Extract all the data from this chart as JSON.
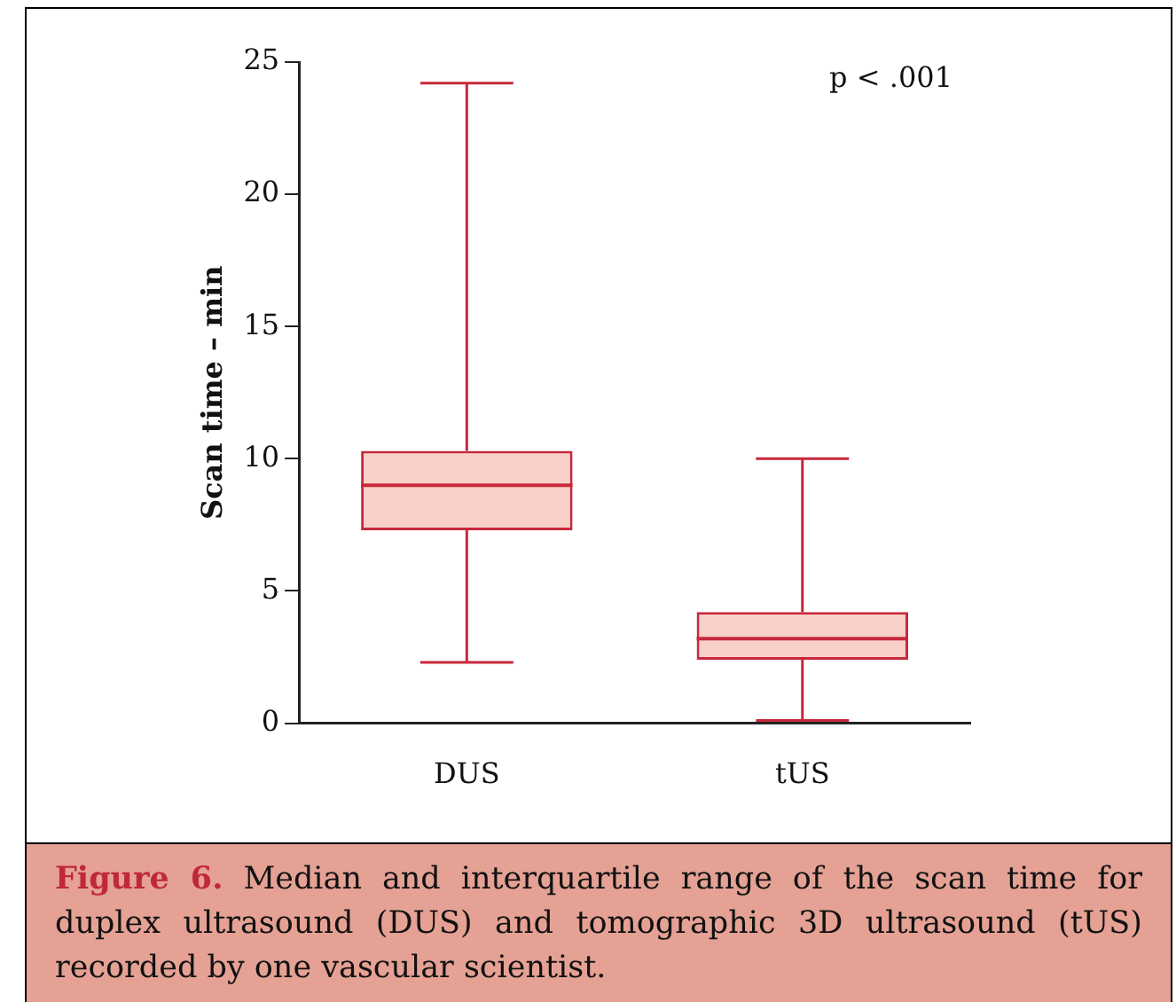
{
  "chart_data": {
    "type": "box",
    "title": "Figure 6.",
    "ylabel": "Scan time – min",
    "categories": [
      "DUS",
      "tUS"
    ],
    "boxes": [
      {
        "low": 2.3,
        "q1": 7.3,
        "median": 9.0,
        "q3": 10.3,
        "high": 24.2
      },
      {
        "low": 0.1,
        "q1": 2.4,
        "median": 3.2,
        "q3": 4.2,
        "high": 10.0
      }
    ],
    "color": "#c8283c",
    "ylim": [
      0,
      25
    ],
    "yticks": [
      0,
      5,
      10,
      15,
      20,
      25
    ],
    "grid": false,
    "legend": false,
    "annotations": [
      "p < .001",
      "Median and interquartile range of the scan time for duplex ultrasound (DUS) and tomographic 3D ultrasound (tUS) recorded by one vascular scientist."
    ]
  }
}
